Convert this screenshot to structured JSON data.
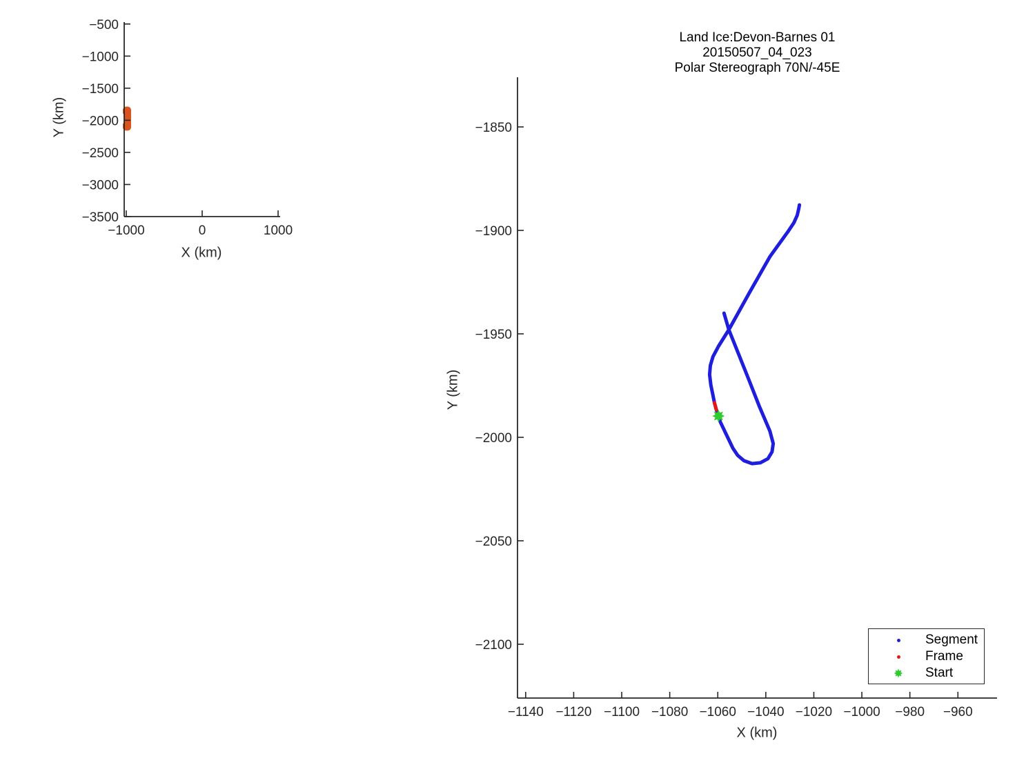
{
  "chart_data": [
    {
      "id": "overview",
      "type": "line",
      "xlabel": "X (km)",
      "ylabel": "Y (km)",
      "xlim": [
        -1027,
        1027
      ],
      "ylim": [
        -3500,
        -470
      ],
      "xticks": [
        -1000,
        0,
        1000
      ],
      "yticks": [
        -500,
        -1000,
        -1500,
        -2000,
        -2500,
        -3000,
        -3500
      ],
      "series": [
        {
          "name": "flight-track-footprint",
          "type": "blob",
          "color": "#D9541E",
          "x_extent": [
            -1045,
            -936
          ],
          "y_extent": [
            -2161,
            -1786
          ]
        }
      ]
    },
    {
      "id": "main",
      "type": "line",
      "title_lines": [
        "Land Ice:Devon-Barnes 01",
        "20150507_04_023",
        "Polar Stereograph 70N/-45E"
      ],
      "xlabel": "X (km)",
      "ylabel": "Y (km)",
      "xlim": [
        -1143.4,
        -943.7
      ],
      "ylim": [
        -2126,
        -1826
      ],
      "xticks": [
        -1140,
        -1120,
        -1100,
        -1080,
        -1060,
        -1040,
        -1020,
        -1000,
        -980,
        -960
      ],
      "yticks": [
        -1850,
        -1900,
        -1950,
        -2000,
        -2050,
        -2100
      ],
      "series": [
        {
          "name": "segment-track",
          "type": "line",
          "color": "#1E1EDC",
          "width": 5,
          "points": [
            [
              -1057.4,
              -1940.0
            ],
            [
              -1055.4,
              -1948.0
            ],
            [
              -1047.1,
              -1972.0
            ],
            [
              -1042.6,
              -1985.3
            ],
            [
              -1038.3,
              -1997.0
            ],
            [
              -1036.9,
              -2003.0
            ],
            [
              -1037.4,
              -2007.0
            ],
            [
              -1039.1,
              -2010.3
            ],
            [
              -1042.3,
              -2012.3
            ],
            [
              -1045.7,
              -2012.7
            ],
            [
              -1049.1,
              -2011.3
            ],
            [
              -1051.7,
              -2008.7
            ],
            [
              -1053.7,
              -2005.3
            ],
            [
              -1058.9,
              -1992.7
            ],
            [
              -1059.7,
              -1989.7
            ],
            [
              -1060.6,
              -1986.7
            ],
            [
              -1061.4,
              -1983.3
            ],
            [
              -1062.0,
              -1979.7
            ],
            [
              -1062.9,
              -1974.7
            ],
            [
              -1063.4,
              -1969.7
            ],
            [
              -1063.1,
              -1965.3
            ],
            [
              -1062.0,
              -1961.0
            ],
            [
              -1059.7,
              -1956.0
            ],
            [
              -1055.4,
              -1948.0
            ],
            [
              -1046.9,
              -1930.3
            ],
            [
              -1038.3,
              -1912.7
            ],
            [
              -1030.6,
              -1900.3
            ],
            [
              -1028.3,
              -1896.3
            ],
            [
              -1026.9,
              -1892.7
            ],
            [
              -1026.3,
              -1889.7
            ],
            [
              -1026.0,
              -1887.7
            ]
          ]
        },
        {
          "name": "frame-track",
          "type": "line",
          "color": "#E61717",
          "width": 5,
          "points": [
            [
              -1060.6,
              -1986.7
            ],
            [
              -1061.0,
              -1985.0
            ],
            [
              -1061.4,
              -1983.3
            ]
          ]
        },
        {
          "name": "start-marker",
          "type": "star",
          "color": "#2FCC2F",
          "size": 9,
          "point": [
            -1059.7,
            -1989.7
          ]
        }
      ],
      "legend": [
        {
          "label": "Segment",
          "marker": "dot",
          "color": "#1E1EDC"
        },
        {
          "label": "Frame",
          "marker": "dot",
          "color": "#E61717"
        },
        {
          "label": "Start",
          "marker": "star",
          "color": "#2FCC2F"
        }
      ]
    }
  ]
}
